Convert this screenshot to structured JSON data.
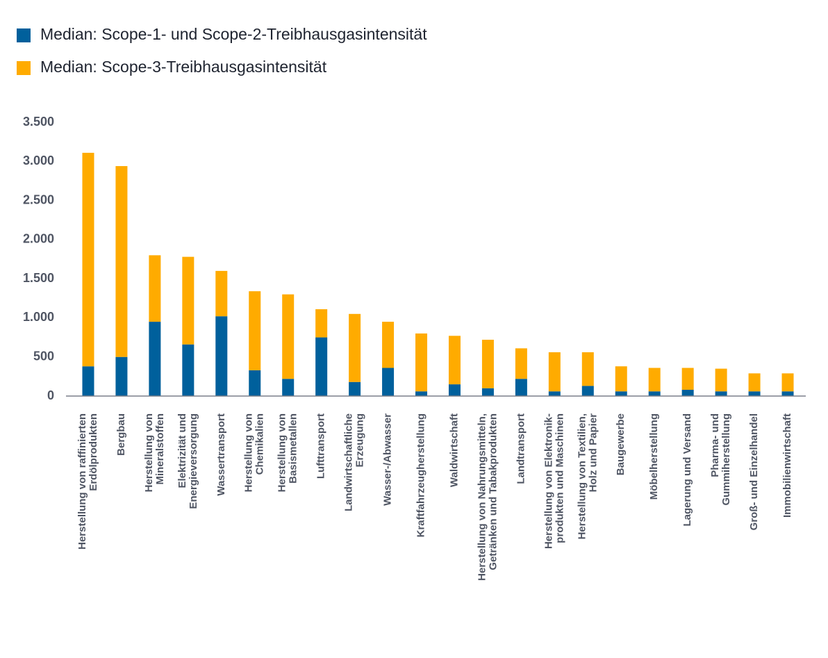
{
  "chart_data": {
    "type": "stacked-bar",
    "categories": [
      [
        "Herstellung von raffinierten",
        "Erdölprodukten"
      ],
      [
        "Bergbau"
      ],
      [
        "Herstellung von",
        "Mineralstoffen"
      ],
      [
        "Elektrizität und",
        "Energieversorgung"
      ],
      [
        "Wassertransport"
      ],
      [
        "Herstellung von",
        "Chemikalien"
      ],
      [
        "Herstellung von",
        "Basismetallen"
      ],
      [
        "Lufttransport"
      ],
      [
        "Landwirtschaftliche",
        "Erzeugung"
      ],
      [
        "Wasser-/Abwasser"
      ],
      [
        "Kraftfahrzeugherstellung"
      ],
      [
        "Waldwirtschaft"
      ],
      [
        "Herstellung von Nahrungsmitteln,",
        "Getränken und Tabakprodukten"
      ],
      [
        "Landtransport"
      ],
      [
        "Herstellung von Elektronik-",
        "produkten und Maschinen"
      ],
      [
        "Herstellung von Textilien,",
        "Holz und Papier"
      ],
      [
        "Baugewerbe"
      ],
      [
        "Möbelherstellung"
      ],
      [
        "Lagerung und Versand"
      ],
      [
        "Pharma- und",
        "Gummiherstellung"
      ],
      [
        "Groß- und Einzelhandel"
      ],
      [
        "Immobilienwirtschaft"
      ]
    ],
    "series": [
      {
        "name": "Median: Scope-1- und Scope-2-Treibhausgasintensität",
        "color": "#00609c",
        "values": [
          380,
          500,
          950,
          660,
          1020,
          330,
          220,
          750,
          180,
          360,
          60,
          150,
          100,
          220,
          60,
          130,
          60,
          60,
          80,
          60,
          60,
          60
        ]
      },
      {
        "name": "Median: Scope-3-Treibhausgasintensität",
        "color": "#ffab00",
        "values": [
          2730,
          2440,
          850,
          1120,
          580,
          1010,
          1080,
          360,
          870,
          590,
          740,
          620,
          620,
          390,
          500,
          430,
          320,
          300,
          280,
          290,
          230,
          230
        ]
      }
    ],
    "ylim": [
      0,
      3500
    ],
    "yticks": [
      0,
      500,
      {
        "value": 1000,
        "label": "1.000"
      },
      {
        "value": 1500,
        "label": "1.500"
      },
      {
        "value": 2000,
        "label": "2.000"
      },
      {
        "value": 2500,
        "label": "2.500"
      },
      {
        "value": 3000,
        "label": "3.000"
      },
      {
        "value": 3500,
        "label": "3.500"
      }
    ],
    "grid": false
  }
}
